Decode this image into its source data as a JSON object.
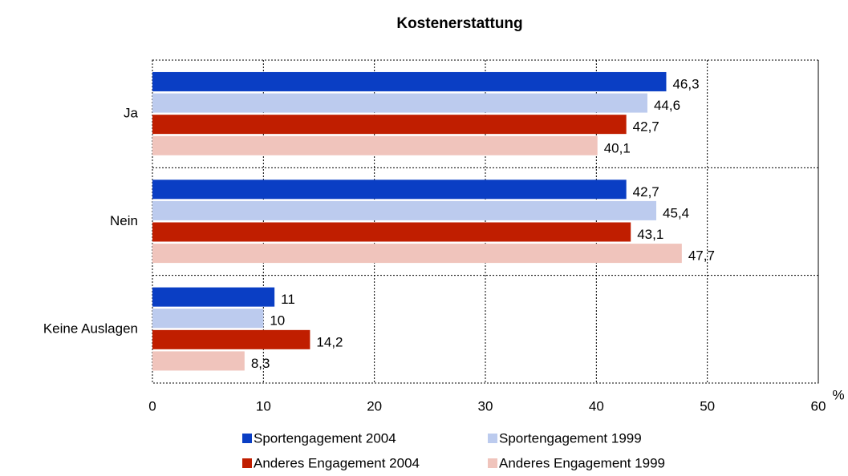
{
  "chart_data": {
    "type": "hbar",
    "title": "Kostenerstattung",
    "x_label": "%",
    "categories": [
      "Ja",
      "Nein",
      "Keine Auslagen"
    ],
    "series": [
      {
        "name": "Sportengagement 2004",
        "color": "#0a3ec4",
        "values": [
          46.3,
          42.7,
          11
        ],
        "value_labels": [
          "46,3",
          "42,7",
          "11"
        ]
      },
      {
        "name": "Sportengagement 1999",
        "color": "#bccbee",
        "values": [
          44.6,
          45.4,
          10
        ],
        "value_labels": [
          "44,6",
          "45,4",
          "10"
        ]
      },
      {
        "name": "Anderes Engagement 2004",
        "color": "#c01e00",
        "values": [
          42.7,
          43.1,
          14.2
        ],
        "value_labels": [
          "42,7",
          "43,1",
          "14,2"
        ]
      },
      {
        "name": "Anderes Engagement 1999",
        "color": "#f0c4bc",
        "values": [
          40.1,
          47.7,
          8.3
        ],
        "value_labels": [
          "40,1",
          "47,7",
          "8,3"
        ]
      }
    ],
    "xlim": [
      0,
      60
    ],
    "xticks": [
      0,
      10,
      20,
      30,
      40,
      50,
      60
    ],
    "grid": true
  }
}
